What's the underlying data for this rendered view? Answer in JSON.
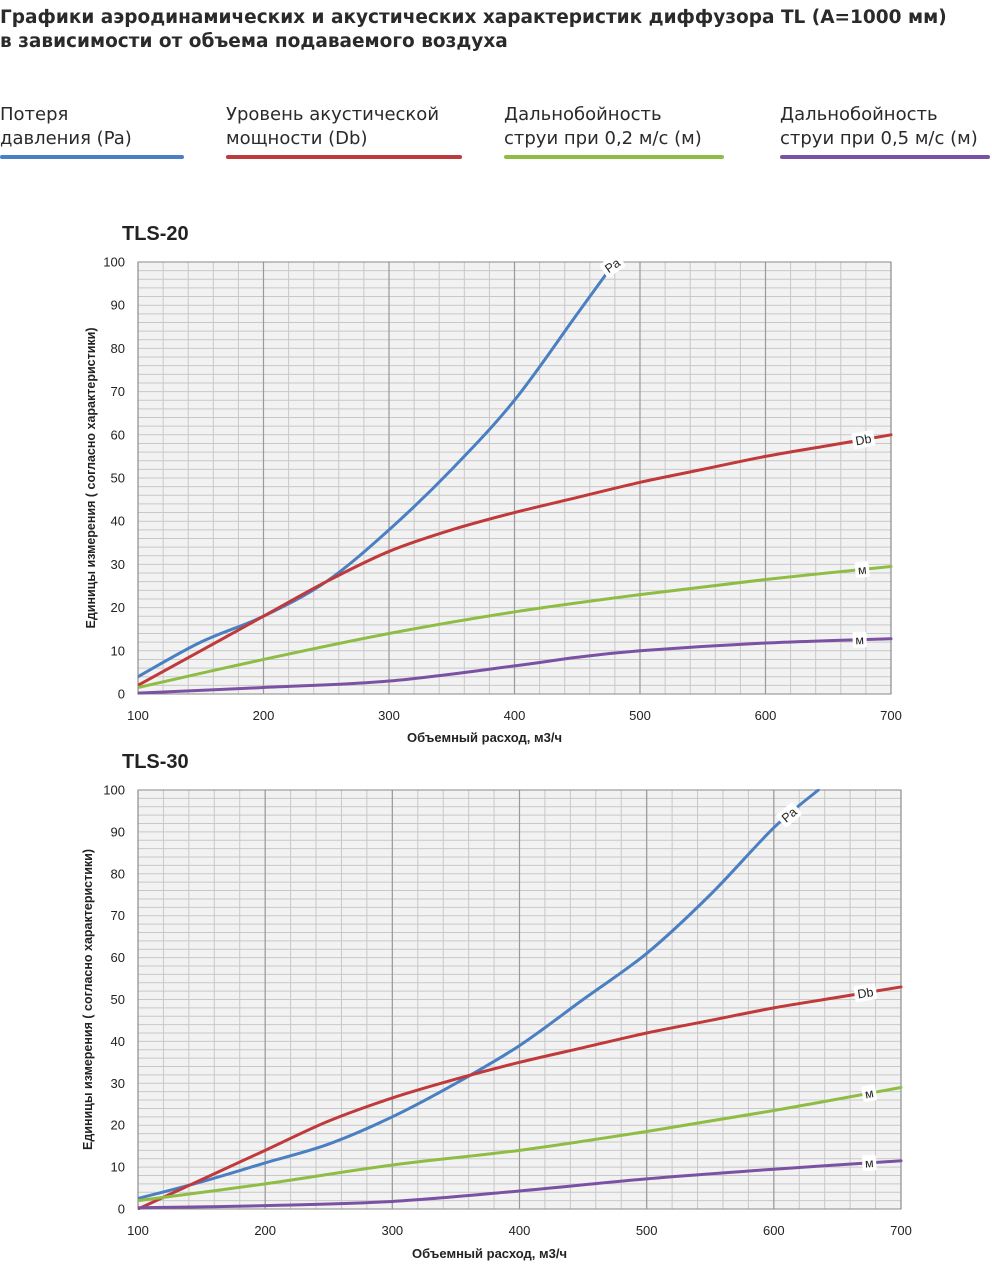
{
  "header": {
    "title_line1": "Графики аэродинамических и акустических характеристик  диффузора TL (A=1000 мм)",
    "title_line2": "в зависимости от объема подаваемого воздуха"
  },
  "legend": [
    {
      "line1": "Потеря",
      "line2": "давления (Pa)",
      "color": "#4a7fc1"
    },
    {
      "line1": "Уровень акустической",
      "line2": "мощности (Db)",
      "color": "#c0393b"
    },
    {
      "line1": "Дальнобойность",
      "line2": "струи при 0,2 м/с (м)",
      "color": "#8fbc45"
    },
    {
      "line1": "Дальнобойность",
      "line2": "струи при 0,5 м/с (м)",
      "color": "#7b52a3"
    }
  ],
  "chart_data": [
    {
      "type": "line",
      "title": "TLS-20",
      "xlabel": "Объемный расход, м3/ч",
      "ylabel": "Единицы измерения ( согласно характеристики)",
      "xlim": [
        100,
        700
      ],
      "ylim": [
        0,
        100
      ],
      "xticks": [
        "100",
        "200",
        "300",
        "400",
        "500",
        "600",
        "700"
      ],
      "yticks": [
        "0",
        "10",
        "20",
        "30",
        "40",
        "50",
        "60",
        "70",
        "80",
        "90",
        "100"
      ],
      "grid": true,
      "series": [
        {
          "name": "Pa",
          "label": "Pa",
          "color": "#4a7fc1",
          "label_at": 478,
          "x": [
            100,
            150,
            200,
            250,
            300,
            350,
            400,
            450,
            480
          ],
          "y": [
            4,
            12,
            18,
            26,
            38,
            52,
            68,
            88,
            100
          ]
        },
        {
          "name": "Db",
          "label": "Db",
          "color": "#c0393b",
          "label_at": 678,
          "x": [
            100,
            150,
            200,
            250,
            300,
            350,
            400,
            450,
            500,
            550,
            600,
            650,
            700
          ],
          "y": [
            2,
            10,
            18,
            26,
            33,
            38,
            42,
            45.5,
            49,
            52,
            55,
            57.5,
            60
          ]
        },
        {
          "name": "м",
          "label": "м",
          "color": "#8fbc45",
          "label_at": 677,
          "x": [
            100,
            200,
            300,
            400,
            500,
            600,
            700
          ],
          "y": [
            1.5,
            8,
            14,
            19,
            23,
            26.5,
            29.5
          ]
        },
        {
          "name": "м",
          "label": "м",
          "color": "#7b52a3",
          "label_at": 675,
          "x": [
            100,
            200,
            300,
            400,
            450,
            500,
            600,
            700
          ],
          "y": [
            0.2,
            1.5,
            3,
            6.5,
            8.5,
            10,
            11.8,
            12.8
          ]
        }
      ]
    },
    {
      "type": "line",
      "title": "TLS-30",
      "xlabel": "Объемный расход, м3/ч",
      "ylabel": "Единицы измерения ( согласно характеристики)",
      "xlim": [
        100,
        700
      ],
      "ylim": [
        0,
        100
      ],
      "xticks": [
        "100",
        "200",
        "300",
        "400",
        "500",
        "600",
        "700"
      ],
      "yticks": [
        "0",
        "10",
        "20",
        "30",
        "40",
        "50",
        "60",
        "70",
        "80",
        "90",
        "100"
      ],
      "grid": true,
      "series": [
        {
          "name": "Pa",
          "label": "Pa",
          "color": "#4a7fc1",
          "label_at": 612,
          "x": [
            100,
            150,
            200,
            250,
            300,
            350,
            400,
            450,
            500,
            550,
            600,
            635
          ],
          "y": [
            2.5,
            6.5,
            11,
            15.5,
            22,
            30,
            39,
            50,
            61,
            75,
            91,
            100
          ]
        },
        {
          "name": "Db",
          "label": "Db",
          "color": "#c0393b",
          "label_at": 672,
          "x": [
            100,
            150,
            200,
            250,
            300,
            350,
            400,
            450,
            500,
            550,
            600,
            650,
            700
          ],
          "y": [
            0,
            7,
            14,
            21,
            26.5,
            31,
            35,
            38.5,
            42,
            45,
            48,
            50.5,
            53
          ]
        },
        {
          "name": "м",
          "label": "м",
          "color": "#8fbc45",
          "label_at": 675,
          "x": [
            100,
            200,
            300,
            400,
            500,
            600,
            700
          ],
          "y": [
            2,
            6,
            10.5,
            14,
            18.5,
            23.5,
            29
          ]
        },
        {
          "name": "м",
          "label": "м",
          "color": "#7b52a3",
          "label_at": 675,
          "x": [
            100,
            200,
            300,
            400,
            500,
            600,
            700
          ],
          "y": [
            0.3,
            0.8,
            1.8,
            4.3,
            7.2,
            9.5,
            11.5
          ]
        }
      ]
    }
  ]
}
